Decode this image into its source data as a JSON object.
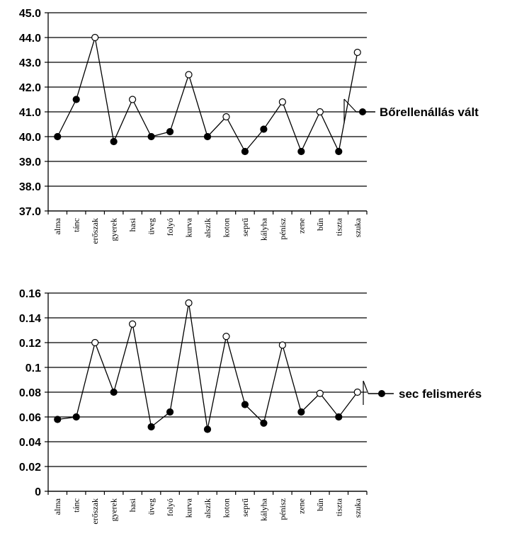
{
  "chart_data": [
    {
      "type": "line",
      "title": "",
      "xlabel": "",
      "ylabel": "",
      "categories": [
        "alma",
        "tánc",
        "erőszak",
        "gyerek",
        "hasi",
        "üveg",
        "folyó",
        "kurva",
        "alszik",
        "koton",
        "seprű",
        "kályha",
        "pénisz",
        "zene",
        "bűn",
        "tiszta",
        "szuka"
      ],
      "ylim": [
        37.0,
        45.0
      ],
      "yticks": [
        "37.0",
        "38.0",
        "39.0",
        "40.0",
        "41.0",
        "42.0",
        "43.0",
        "44.0",
        "45.0"
      ],
      "grid": true,
      "legend": "right",
      "series": [
        {
          "name": "Bőrellenállás vált",
          "values": [
            40.0,
            41.5,
            44.0,
            39.8,
            41.5,
            40.0,
            40.2,
            42.5,
            40.0,
            40.8,
            39.4,
            40.3,
            41.4,
            39.4,
            41.0,
            39.4,
            43.4
          ],
          "marker_fill": [
            "black",
            "black",
            "white",
            "black",
            "white",
            "black",
            "black",
            "white",
            "black",
            "white",
            "black",
            "black",
            "white",
            "black",
            "white",
            "black",
            "white"
          ]
        }
      ]
    },
    {
      "type": "line",
      "title": "",
      "xlabel": "",
      "ylabel": "",
      "categories": [
        "alma",
        "tánc",
        "erőszak",
        "gyerek",
        "hasi",
        "üveg",
        "folyó",
        "kurva",
        "alszik",
        "koton",
        "seprű",
        "kályha",
        "pénisz",
        "zene",
        "bűn",
        "tiszta",
        "szuka"
      ],
      "ylim": [
        0,
        0.16
      ],
      "yticks": [
        "0",
        "0.02",
        "0.04",
        "0.06",
        "0.08",
        "0.1",
        "0.12",
        "0.14",
        "0.16"
      ],
      "grid": true,
      "legend": "right",
      "series": [
        {
          "name": "sec felismerés",
          "values": [
            0.058,
            0.06,
            0.12,
            0.08,
            0.135,
            0.052,
            0.064,
            0.152,
            0.05,
            0.125,
            0.07,
            0.055,
            0.118,
            0.064,
            0.079,
            0.06,
            0.08
          ],
          "marker_fill": [
            "black",
            "black",
            "white",
            "black",
            "white",
            "black",
            "black",
            "white",
            "black",
            "white",
            "black",
            "black",
            "white",
            "black",
            "white",
            "black",
            "white"
          ]
        }
      ]
    }
  ]
}
